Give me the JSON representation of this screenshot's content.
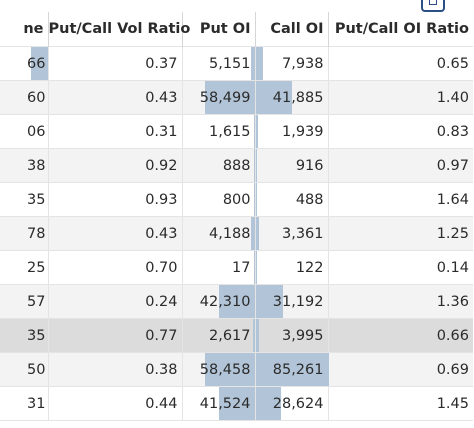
{
  "headers": [
    "ne",
    "Put/Call Vol Ratio",
    "Put OI",
    "Call OI",
    "Put/Call OI Ratio"
  ],
  "bar_color": "#b2c4d7",
  "rows": [
    {
      "c0": "66",
      "ratio": "0.37",
      "put_oi": "5,151",
      "call_oi": "7,938",
      "oi_ratio": "0.65",
      "put_oi_value": 5151,
      "call_oi_value": 7938,
      "first_bar_fraction": 0.35
    },
    {
      "c0": "60",
      "ratio": "0.43",
      "put_oi": "58,499",
      "call_oi": "41,885",
      "oi_ratio": "1.40",
      "put_oi_value": 58499,
      "call_oi_value": 41885
    },
    {
      "c0": "06",
      "ratio": "0.31",
      "put_oi": "1,615",
      "call_oi": "1,939",
      "oi_ratio": "0.83",
      "put_oi_value": 1615,
      "call_oi_value": 1939
    },
    {
      "c0": "38",
      "ratio": "0.92",
      "put_oi": "888",
      "call_oi": "916",
      "oi_ratio": "0.97",
      "put_oi_value": 888,
      "call_oi_value": 916
    },
    {
      "c0": "35",
      "ratio": "0.93",
      "put_oi": "800",
      "call_oi": "488",
      "oi_ratio": "1.64",
      "put_oi_value": 800,
      "call_oi_value": 488
    },
    {
      "c0": "78",
      "ratio": "0.43",
      "put_oi": "4,188",
      "call_oi": "3,361",
      "oi_ratio": "1.25",
      "put_oi_value": 4188,
      "call_oi_value": 3361
    },
    {
      "c0": "25",
      "ratio": "0.70",
      "put_oi": "17",
      "call_oi": "122",
      "oi_ratio": "0.14",
      "put_oi_value": 17,
      "call_oi_value": 122
    },
    {
      "c0": "57",
      "ratio": "0.24",
      "put_oi": "42,310",
      "call_oi": "31,192",
      "oi_ratio": "1.36",
      "put_oi_value": 42310,
      "call_oi_value": 31192
    },
    {
      "c0": "35",
      "ratio": "0.77",
      "put_oi": "2,617",
      "call_oi": "3,995",
      "oi_ratio": "0.66",
      "put_oi_value": 2617,
      "call_oi_value": 3995
    },
    {
      "c0": "50",
      "ratio": "0.38",
      "put_oi": "58,458",
      "call_oi": "85,261",
      "oi_ratio": "0.69",
      "put_oi_value": 58458,
      "call_oi_value": 85261
    },
    {
      "c0": "31",
      "ratio": "0.44",
      "put_oi": "41,524",
      "call_oi": "28,624",
      "oi_ratio": "1.45",
      "put_oi_value": 41524,
      "call_oi_value": 28624
    }
  ]
}
